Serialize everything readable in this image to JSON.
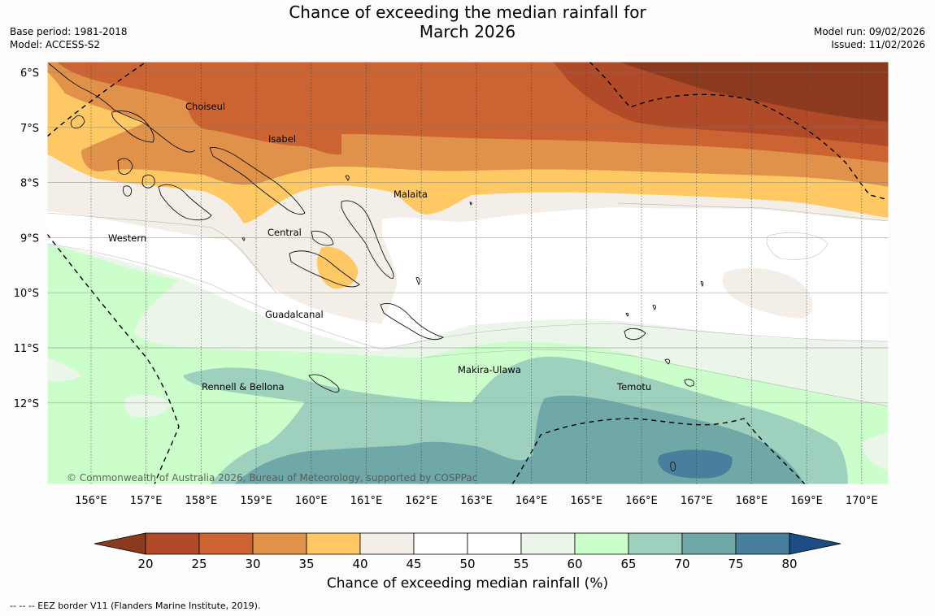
{
  "title_line1": "Chance of exceeding the median rainfall for",
  "title_line2": "March 2026",
  "base_period": "Base period: 1981-2018",
  "model": "Model: ACCESS-S2",
  "model_run": "Model run: 09/02/2026",
  "issued": "Issued: 11/02/2026",
  "copyright": "© Commonwealth of Australia 2026, Bureau of Meteorology, supported by COSPPac",
  "footnote": "--  --  -- EEZ border V11 (Flanders Marine Institute, 2019).",
  "lon_labels": [
    "156°E",
    "157°E",
    "158°E",
    "159°E",
    "160°E",
    "161°E",
    "162°E",
    "163°E",
    "164°E",
    "165°E",
    "166°E",
    "167°E",
    "168°E",
    "169°E",
    "170°E"
  ],
  "lat_labels": [
    "6°S",
    "7°S",
    "8°S",
    "9°S",
    "10°S",
    "11°S",
    "12°S"
  ],
  "province_labels": [
    "Choiseul",
    "Isabel",
    "Malaita",
    "Western",
    "Central",
    "Guadalcanal",
    "Makira-Ulawa",
    "Rennell & Bellona",
    "Temotu"
  ],
  "colorbar": {
    "label": "Chance of exceeding median rainfall (%)",
    "ticks": [
      "20",
      "25",
      "30",
      "35",
      "40",
      "45",
      "50",
      "55",
      "60",
      "65",
      "70",
      "75",
      "80"
    ],
    "colors": [
      "#b14a29",
      "#cb6333",
      "#e0924a",
      "#fec865",
      "#f3eee8",
      "#ffffff",
      "#ffffff",
      "#ebf5ea",
      "#cbfecb",
      "#9dd1bd",
      "#70a8a8",
      "#477f9c"
    ],
    "low_color": "#8b3a20",
    "high_color": "#1b4c83"
  }
}
